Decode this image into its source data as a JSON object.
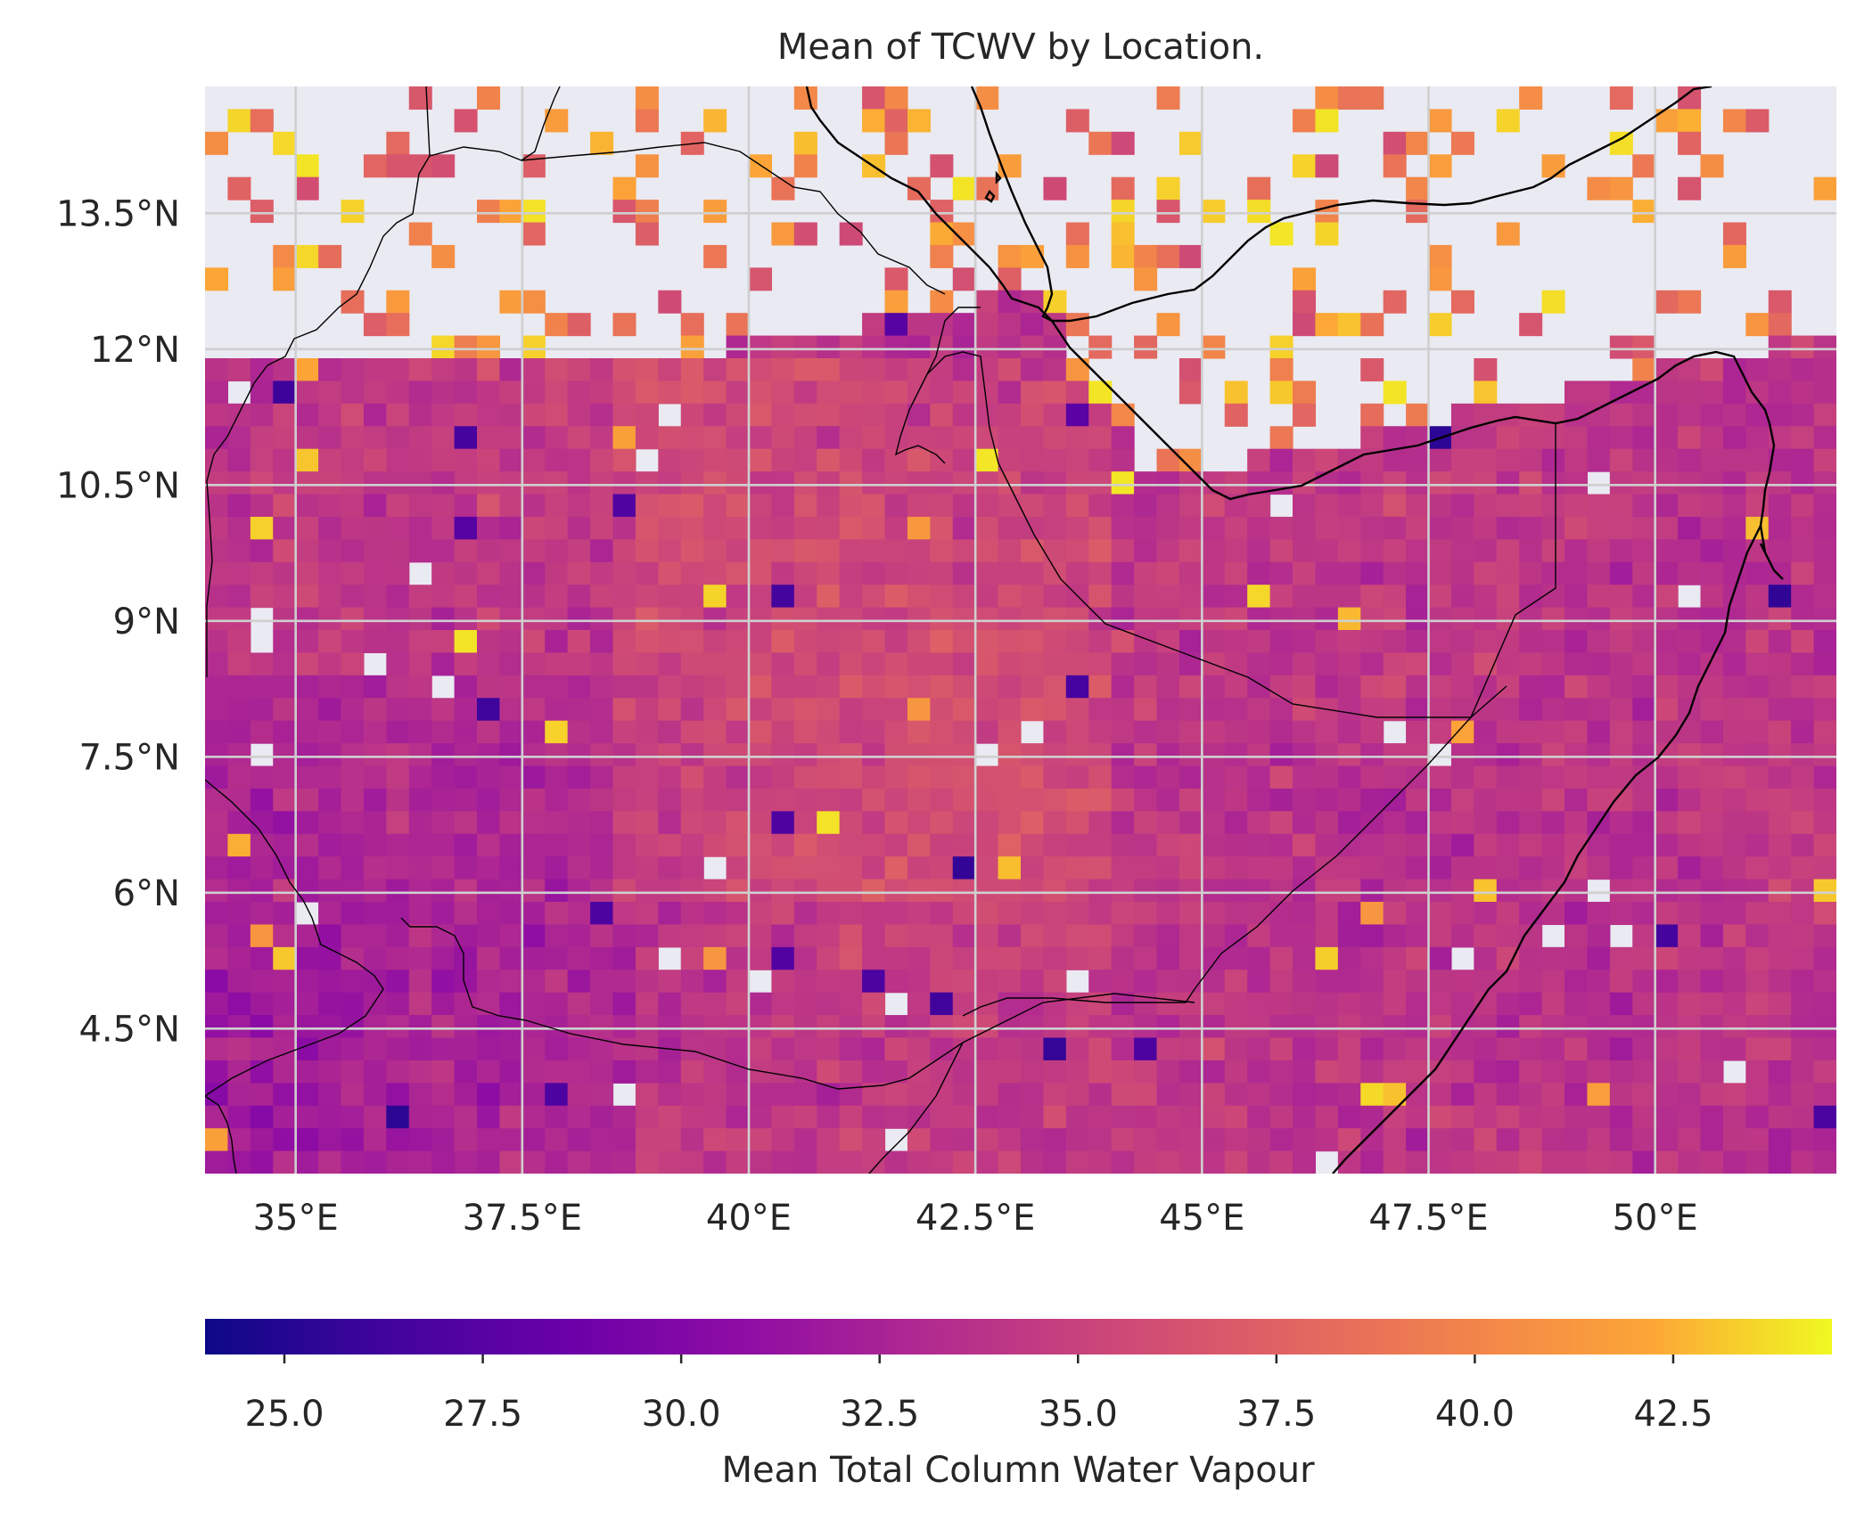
{
  "chart_data": {
    "type": "heatmap",
    "title": "Mean of TCWV by Location.",
    "colorbar_label": "Mean Total Column Water Vapour",
    "colormap": "plasma",
    "color_range": [
      24.0,
      44.5
    ],
    "lon_range": [
      34.0,
      52.0
    ],
    "lat_range": [
      2.9,
      14.9
    ],
    "cell_size_deg": 0.25,
    "x_ticks": [
      35,
      37.5,
      40,
      42.5,
      45,
      47.5,
      50
    ],
    "x_tick_labels": [
      "35°E",
      "37.5°E",
      "40°E",
      "42.5°E",
      "45°E",
      "47.5°E",
      "50°E"
    ],
    "y_ticks": [
      4.5,
      6,
      7.5,
      9,
      10.5,
      12,
      13.5
    ],
    "y_tick_labels": [
      "4.5°N",
      "6°N",
      "7.5°N",
      "9°N",
      "10.5°N",
      "12°N",
      "13.5°N"
    ],
    "colorbar_ticks": [
      25.0,
      27.5,
      30.0,
      32.5,
      35.0,
      37.5,
      40.0,
      42.5
    ],
    "colorbar_tick_labels": [
      "25.0",
      "27.5",
      "30.0",
      "32.5",
      "35.0",
      "37.5",
      "40.0",
      "42.5"
    ],
    "grid": true,
    "no_data_color": "#eaeaf2",
    "field_summary": {
      "typical_range": [
        31.0,
        37.5
      ],
      "moister_region": "north-central and southern Somalia coast (36-39)",
      "drier_region": "southwest Kenya/Ethiopia lowlands (28-31)",
      "ocean_north_sparse": "Red Sea / Gulf of Aden mostly no data with scattered 36-44 cells"
    }
  }
}
